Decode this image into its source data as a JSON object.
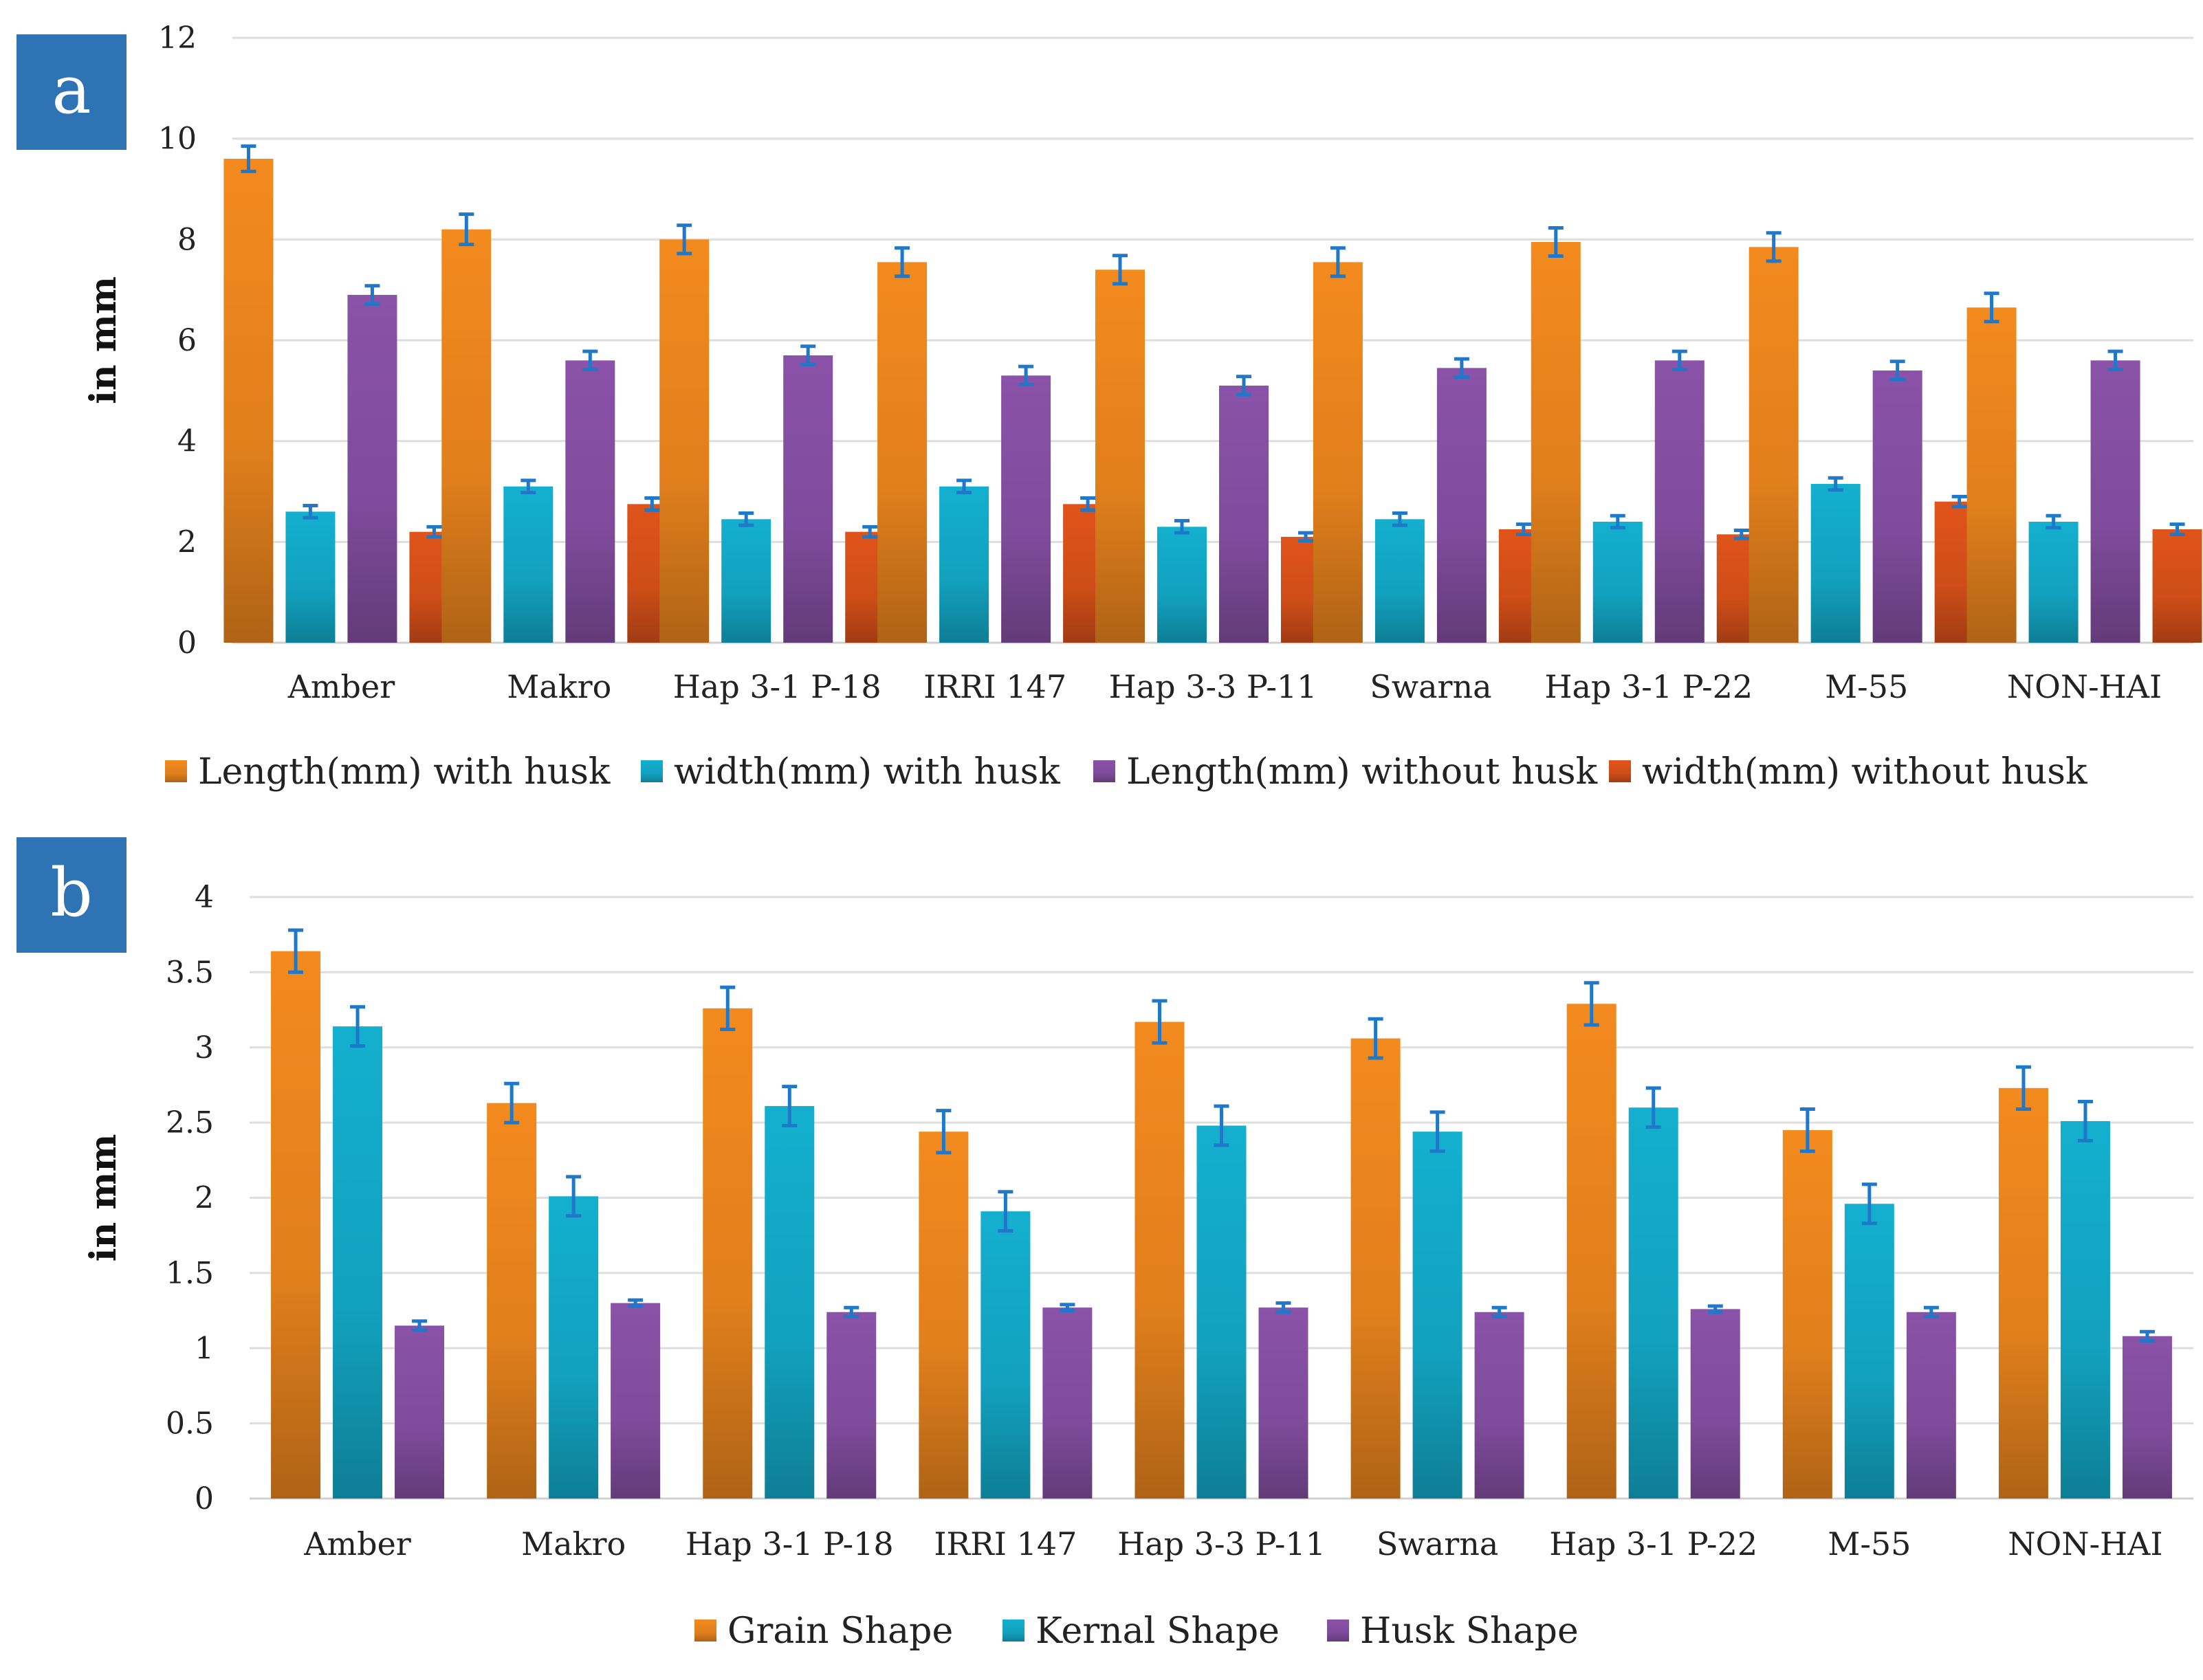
{
  "chart_data": [
    {
      "panel_label": "a",
      "type": "bar",
      "ylabel": "in mm",
      "ylim": [
        0,
        12
      ],
      "yticks": [
        0,
        2,
        4,
        6,
        8,
        10,
        12
      ],
      "grid": true,
      "legend_position": "bottom",
      "categories": [
        "Amber",
        "Makro",
        "Hap 3-1 P-18",
        "IRRI 147",
        "Hap 3-3 P-11",
        "Swarna",
        "Hap 3-1 P-22",
        "M-55",
        "NON-HAI"
      ],
      "series": [
        {
          "name": "Length(mm) with husk",
          "color": "#F38A1E",
          "values": [
            9.6,
            8.2,
            8.0,
            7.55,
            7.4,
            7.55,
            7.95,
            7.85,
            6.65
          ],
          "errors": [
            0.25,
            0.3,
            0.28,
            0.28,
            0.28,
            0.28,
            0.28,
            0.28,
            0.28
          ]
        },
        {
          "name": "width(mm) with husk",
          "color": "#14AFCF",
          "values": [
            2.6,
            3.1,
            2.45,
            3.1,
            2.3,
            2.45,
            2.4,
            3.15,
            2.4
          ],
          "errors": [
            0.12,
            0.12,
            0.12,
            0.12,
            0.12,
            0.12,
            0.12,
            0.12,
            0.12
          ]
        },
        {
          "name": "Length(mm) without husk",
          "color": "#8A52A8",
          "values": [
            6.9,
            5.6,
            5.7,
            5.3,
            5.1,
            5.45,
            5.6,
            5.4,
            5.6
          ],
          "errors": [
            0.18,
            0.18,
            0.18,
            0.18,
            0.18,
            0.18,
            0.18,
            0.18,
            0.18
          ]
        },
        {
          "name": "width(mm) without husk",
          "color": "#E0541A",
          "values": [
            2.2,
            2.75,
            2.2,
            2.75,
            2.1,
            2.25,
            2.15,
            2.8,
            2.25
          ],
          "errors": [
            0.1,
            0.12,
            0.1,
            0.12,
            0.08,
            0.1,
            0.08,
            0.1,
            0.1
          ]
        }
      ]
    },
    {
      "panel_label": "b",
      "type": "bar",
      "ylabel": "in mm",
      "ylim": [
        0,
        4
      ],
      "yticks": [
        "0",
        "0.5",
        "1",
        "1.5",
        "2",
        "2.5",
        "3",
        "3.5",
        "4"
      ],
      "grid": true,
      "legend_position": "bottom",
      "categories": [
        "Amber",
        "Makro",
        "Hap 3-1 P-18",
        "IRRI 147",
        "Hap 3-3 P-11",
        "Swarna",
        "Hap 3-1 P-22",
        "M-55",
        "NON-HAI"
      ],
      "series": [
        {
          "name": "Grain Shape",
          "color": "#F38A1E",
          "values": [
            3.64,
            2.63,
            3.26,
            2.44,
            3.17,
            3.06,
            3.29,
            2.45,
            2.73
          ],
          "errors": [
            0.14,
            0.13,
            0.14,
            0.14,
            0.14,
            0.13,
            0.14,
            0.14,
            0.14
          ]
        },
        {
          "name": "Kernal Shape",
          "color": "#14AFCF",
          "values": [
            3.14,
            2.01,
            2.61,
            1.91,
            2.48,
            2.44,
            2.6,
            1.96,
            2.51
          ],
          "errors": [
            0.13,
            0.13,
            0.13,
            0.13,
            0.13,
            0.13,
            0.13,
            0.13,
            0.13
          ]
        },
        {
          "name": "Husk Shape",
          "color": "#8A52A8",
          "values": [
            1.15,
            1.3,
            1.24,
            1.27,
            1.27,
            1.24,
            1.26,
            1.24,
            1.08
          ],
          "errors": [
            0.03,
            0.02,
            0.03,
            0.02,
            0.03,
            0.03,
            0.02,
            0.03,
            0.03
          ]
        }
      ]
    }
  ]
}
